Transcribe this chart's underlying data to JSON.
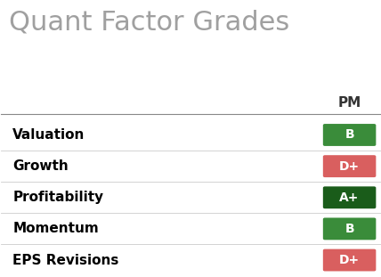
{
  "title": "Quant Factor Grades",
  "title_color": "#a0a0a0",
  "title_fontsize": 22,
  "column_header": "PM",
  "background_color": "#ffffff",
  "rows": [
    {
      "label": "Valuation",
      "grade": "B",
      "color": "#3a8c3a"
    },
    {
      "label": "Growth",
      "grade": "D+",
      "color": "#d95f5f"
    },
    {
      "label": "Profitability",
      "grade": "A+",
      "color": "#1a5c1a"
    },
    {
      "label": "Momentum",
      "grade": "B",
      "color": "#3a8c3a"
    },
    {
      "label": "EPS Revisions",
      "grade": "D+",
      "color": "#d95f5f"
    }
  ],
  "label_fontsize": 11,
  "grade_fontsize": 10,
  "header_fontsize": 11,
  "label_color": "#000000",
  "grade_text_color": "#ffffff",
  "header_color": "#333333",
  "divider_color": "#cccccc",
  "header_divider_color": "#888888"
}
